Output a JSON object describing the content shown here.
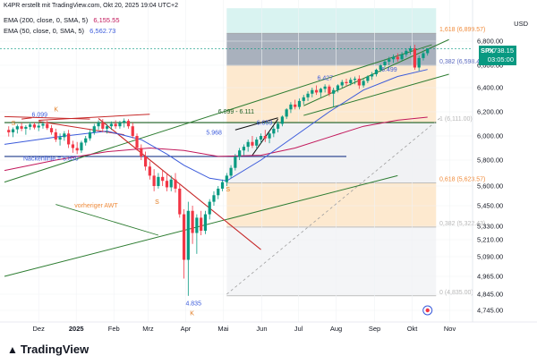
{
  "header": {
    "credit": "K4PR erstellt mit TradingView.com, Okt 20, 2025 19:04 UTC+2"
  },
  "indicators": [
    {
      "label": "EMA (200, close, 0, SMA, 5)",
      "value": "6,155.55",
      "color": "#c2185b"
    },
    {
      "label": "EMA (50, close, 0, SMA, 5)",
      "value": "6,562.73",
      "color": "#3b5bdb"
    }
  ],
  "currency": "USD",
  "price_box": {
    "symbol": "SPX",
    "price": "6,738.15",
    "countdown": "03:05:00"
  },
  "logo": "TradingView",
  "fib_labels": [
    {
      "text": "1,618 (6,899.57)",
      "y": 6899.57,
      "color": "#f08c3c"
    },
    {
      "text": "0,382 (6,598.43)",
      "y": 6598.43,
      "color": "#5c6bc0"
    },
    {
      "text": "1 (6,111.00)",
      "y": 6111.0,
      "color": "#b8b8b8"
    },
    {
      "text": "0,618 (5,623.57)",
      "y": 5623.57,
      "color": "#f08c3c"
    },
    {
      "text": "0,382 (5,322.43)",
      "y": 5322.43,
      "color": "#b8b8b8"
    },
    {
      "text": "0 (4,835.00)",
      "y": 4835.0,
      "color": "#b8b8b8"
    }
  ],
  "annotations": [
    {
      "text": "6.099",
      "x": 3.2,
      "y": 6160,
      "color": "#3b5bdb"
    },
    {
      "text": "6.099 - 6.111",
      "x": 25,
      "y": 6185,
      "color": "#1b5e20"
    },
    {
      "text": "5.968",
      "x": 23.6,
      "y": 6010,
      "color": "#3b5bdb"
    },
    {
      "text": "6.059",
      "x": 29.5,
      "y": 6092,
      "color": "#3b5bdb"
    },
    {
      "text": "6.427",
      "x": 36.6,
      "y": 6470,
      "color": "#3b5bdb"
    },
    {
      "text": "6.499",
      "x": 44.1,
      "y": 6545,
      "color": "#3b5bdb"
    },
    {
      "text": "Nackenlinie = 5.830",
      "x": 2.2,
      "y": 5795,
      "color": "#3b5bdb"
    },
    {
      "text": "vorheriger AWT",
      "x": 8.2,
      "y": 5440,
      "color": "#f08c3c"
    },
    {
      "text": "4.835",
      "x": 21.2,
      "y": 4775,
      "color": "#3b5bdb"
    },
    {
      "text": "S",
      "x": 0.8,
      "y": 6090,
      "color": "#e07a1f"
    },
    {
      "text": "K",
      "x": 5.8,
      "y": 6205,
      "color": "#e07a1f"
    },
    {
      "text": "S",
      "x": 17.6,
      "y": 5465,
      "color": "#e07a1f"
    },
    {
      "text": "S",
      "x": 25.9,
      "y": 5560,
      "color": "#e07a1f"
    },
    {
      "text": "K",
      "x": 21.7,
      "y": 4715,
      "color": "#e07a1f"
    }
  ],
  "chart_data": {
    "type": "candlestick",
    "title": "",
    "ylim": [
      4700,
      8000
    ],
    "y_axis_ticks": [
      "6,800.00",
      "6,600.00",
      "6,400.00",
      "6,200.00",
      "6,000.00",
      "5,800.00",
      "5,600.00",
      "5,450.00",
      "5,330.00",
      "5,210.00",
      "5,090.00",
      "4,965.00",
      "4,845.00",
      "4,745.00"
    ],
    "x_axis_ticks": [
      {
        "label": "Dez",
        "t": 4
      },
      {
        "label": "2025",
        "t": 8.4
      },
      {
        "label": "Feb",
        "t": 12.8
      },
      {
        "label": "Mrz",
        "t": 16.8
      },
      {
        "label": "Apr",
        "t": 21.2
      },
      {
        "label": "Mai",
        "t": 25.6
      },
      {
        "label": "Jun",
        "t": 30.1
      },
      {
        "label": "Jul",
        "t": 34.4
      },
      {
        "label": "Aug",
        "t": 38.8
      },
      {
        "label": "Sep",
        "t": 43.3
      },
      {
        "label": "Okt",
        "t": 47.7
      },
      {
        "label": "Nov",
        "t": 52.1
      }
    ],
    "last_price": 6738.15,
    "candles": [
      {
        "t": 0.5,
        "o": 6050,
        "h": 6080,
        "l": 5995,
        "c": 6030
      },
      {
        "t": 1,
        "o": 6030,
        "h": 6070,
        "l": 5990,
        "c": 6055
      },
      {
        "t": 1.5,
        "o": 6055,
        "h": 6095,
        "l": 6020,
        "c": 6080
      },
      {
        "t": 2,
        "o": 6080,
        "h": 6110,
        "l": 6040,
        "c": 6060
      },
      {
        "t": 2.5,
        "o": 6060,
        "h": 6090,
        "l": 6010,
        "c": 6075
      },
      {
        "t": 3,
        "o": 6075,
        "h": 6115,
        "l": 6050,
        "c": 6095
      },
      {
        "t": 3.5,
        "o": 6095,
        "h": 6110,
        "l": 6055,
        "c": 6070
      },
      {
        "t": 4,
        "o": 6070,
        "h": 6105,
        "l": 6040,
        "c": 6085
      },
      {
        "t": 4.5,
        "o": 6085,
        "h": 6120,
        "l": 6060,
        "c": 6100
      },
      {
        "t": 5,
        "o": 6100,
        "h": 6125,
        "l": 6050,
        "c": 6065
      },
      {
        "t": 5.5,
        "o": 6065,
        "h": 6090,
        "l": 6010,
        "c": 6030
      },
      {
        "t": 6,
        "o": 6030,
        "h": 6060,
        "l": 5950,
        "c": 5970
      },
      {
        "t": 6.5,
        "o": 5970,
        "h": 6020,
        "l": 5920,
        "c": 5990
      },
      {
        "t": 7,
        "o": 5990,
        "h": 6040,
        "l": 5960,
        "c": 6020
      },
      {
        "t": 7.5,
        "o": 6020,
        "h": 6050,
        "l": 5900,
        "c": 5930
      },
      {
        "t": 8,
        "o": 5930,
        "h": 5960,
        "l": 5860,
        "c": 5900
      },
      {
        "t": 8.5,
        "o": 5900,
        "h": 5950,
        "l": 5850,
        "c": 5880
      },
      {
        "t": 9,
        "o": 5880,
        "h": 5960,
        "l": 5860,
        "c": 5945
      },
      {
        "t": 9.5,
        "o": 5945,
        "h": 6000,
        "l": 5920,
        "c": 5980
      },
      {
        "t": 10,
        "o": 5980,
        "h": 6050,
        "l": 5960,
        "c": 6030
      },
      {
        "t": 10.5,
        "o": 6030,
        "h": 6100,
        "l": 6010,
        "c": 6080
      },
      {
        "t": 11,
        "o": 6080,
        "h": 6130,
        "l": 6050,
        "c": 6110
      },
      {
        "t": 11.5,
        "o": 6110,
        "h": 6140,
        "l": 6030,
        "c": 6060
      },
      {
        "t": 12,
        "o": 6060,
        "h": 6100,
        "l": 6020,
        "c": 6080
      },
      {
        "t": 12.5,
        "o": 6080,
        "h": 6120,
        "l": 6050,
        "c": 6100
      },
      {
        "t": 13,
        "o": 6100,
        "h": 6130,
        "l": 6060,
        "c": 6080
      },
      {
        "t": 13.5,
        "o": 6080,
        "h": 6125,
        "l": 6060,
        "c": 6110
      },
      {
        "t": 14,
        "o": 6110,
        "h": 6145,
        "l": 6070,
        "c": 6125
      },
      {
        "t": 14.5,
        "o": 6125,
        "h": 6140,
        "l": 6060,
        "c": 6080
      },
      {
        "t": 15,
        "o": 6080,
        "h": 6110,
        "l": 5980,
        "c": 6000
      },
      {
        "t": 15.5,
        "o": 6000,
        "h": 6020,
        "l": 5880,
        "c": 5900
      },
      {
        "t": 16,
        "o": 5900,
        "h": 5930,
        "l": 5800,
        "c": 5830
      },
      {
        "t": 16.5,
        "o": 5830,
        "h": 5870,
        "l": 5720,
        "c": 5750
      },
      {
        "t": 17,
        "o": 5750,
        "h": 5790,
        "l": 5650,
        "c": 5680
      },
      {
        "t": 17.5,
        "o": 5680,
        "h": 5730,
        "l": 5560,
        "c": 5600
      },
      {
        "t": 18,
        "o": 5600,
        "h": 5700,
        "l": 5580,
        "c": 5670
      },
      {
        "t": 18.5,
        "o": 5670,
        "h": 5720,
        "l": 5600,
        "c": 5640
      },
      {
        "t": 19,
        "o": 5640,
        "h": 5700,
        "l": 5560,
        "c": 5590
      },
      {
        "t": 19.5,
        "o": 5590,
        "h": 5680,
        "l": 5560,
        "c": 5650
      },
      {
        "t": 20,
        "o": 5650,
        "h": 5700,
        "l": 5550,
        "c": 5580
      },
      {
        "t": 20.5,
        "o": 5580,
        "h": 5620,
        "l": 5380,
        "c": 5400
      },
      {
        "t": 21,
        "o": 5400,
        "h": 5430,
        "l": 4950,
        "c": 5070
      },
      {
        "t": 21.5,
        "o": 5070,
        "h": 5480,
        "l": 4835,
        "c": 5420
      },
      {
        "t": 22,
        "o": 5420,
        "h": 5450,
        "l": 5180,
        "c": 5270
      },
      {
        "t": 22.5,
        "o": 5270,
        "h": 5400,
        "l": 5110,
        "c": 5380
      },
      {
        "t": 23,
        "o": 5380,
        "h": 5420,
        "l": 5250,
        "c": 5290
      },
      {
        "t": 23.5,
        "o": 5290,
        "h": 5420,
        "l": 5260,
        "c": 5400
      },
      {
        "t": 24,
        "o": 5400,
        "h": 5500,
        "l": 5370,
        "c": 5480
      },
      {
        "t": 24.5,
        "o": 5480,
        "h": 5560,
        "l": 5450,
        "c": 5530
      },
      {
        "t": 25,
        "o": 5530,
        "h": 5600,
        "l": 5500,
        "c": 5580
      },
      {
        "t": 25.5,
        "o": 5580,
        "h": 5650,
        "l": 5560,
        "c": 5630
      },
      {
        "t": 26,
        "o": 5630,
        "h": 5700,
        "l": 5600,
        "c": 5680
      },
      {
        "t": 26.5,
        "o": 5680,
        "h": 5760,
        "l": 5660,
        "c": 5740
      },
      {
        "t": 27,
        "o": 5740,
        "h": 5850,
        "l": 5720,
        "c": 5830
      },
      {
        "t": 27.5,
        "o": 5830,
        "h": 5900,
        "l": 5800,
        "c": 5880
      },
      {
        "t": 28,
        "o": 5880,
        "h": 5930,
        "l": 5840,
        "c": 5910
      },
      {
        "t": 28.5,
        "o": 5910,
        "h": 5970,
        "l": 5870,
        "c": 5950
      },
      {
        "t": 29,
        "o": 5950,
        "h": 6000,
        "l": 5900,
        "c": 5920
      },
      {
        "t": 29.5,
        "o": 5920,
        "h": 5990,
        "l": 5890,
        "c": 5970
      },
      {
        "t": 30,
        "o": 5970,
        "h": 6020,
        "l": 5940,
        "c": 6000
      },
      {
        "t": 30.5,
        "o": 6000,
        "h": 6050,
        "l": 5950,
        "c": 5980
      },
      {
        "t": 31,
        "o": 5980,
        "h": 6030,
        "l": 5940,
        "c": 6020
      },
      {
        "t": 31.5,
        "o": 6020,
        "h": 6080,
        "l": 5990,
        "c": 6060
      },
      {
        "t": 32,
        "o": 6060,
        "h": 6120,
        "l": 6030,
        "c": 6100
      },
      {
        "t": 32.5,
        "o": 6100,
        "h": 6170,
        "l": 6080,
        "c": 6160
      },
      {
        "t": 33,
        "o": 6160,
        "h": 6230,
        "l": 6140,
        "c": 6220
      },
      {
        "t": 33.5,
        "o": 6220,
        "h": 6280,
        "l": 6190,
        "c": 6260
      },
      {
        "t": 34,
        "o": 6260,
        "h": 6300,
        "l": 6220,
        "c": 6240
      },
      {
        "t": 34.5,
        "o": 6240,
        "h": 6310,
        "l": 6220,
        "c": 6290
      },
      {
        "t": 35,
        "o": 6290,
        "h": 6340,
        "l": 6260,
        "c": 6320
      },
      {
        "t": 35.5,
        "o": 6320,
        "h": 6370,
        "l": 6290,
        "c": 6350
      },
      {
        "t": 36,
        "o": 6350,
        "h": 6400,
        "l": 6320,
        "c": 6380
      },
      {
        "t": 36.5,
        "o": 6380,
        "h": 6420,
        "l": 6340,
        "c": 6360
      },
      {
        "t": 37,
        "o": 6360,
        "h": 6400,
        "l": 6320,
        "c": 6390
      },
      {
        "t": 37.5,
        "o": 6390,
        "h": 6430,
        "l": 6360,
        "c": 6410
      },
      {
        "t": 38,
        "o": 6410,
        "h": 6427,
        "l": 6330,
        "c": 6350
      },
      {
        "t": 38.5,
        "o": 6350,
        "h": 6400,
        "l": 6240,
        "c": 6380
      },
      {
        "t": 39,
        "o": 6380,
        "h": 6430,
        "l": 6360,
        "c": 6420
      },
      {
        "t": 39.5,
        "o": 6420,
        "h": 6470,
        "l": 6400,
        "c": 6450
      },
      {
        "t": 40,
        "o": 6450,
        "h": 6480,
        "l": 6410,
        "c": 6440
      },
      {
        "t": 40.5,
        "o": 6440,
        "h": 6490,
        "l": 6420,
        "c": 6470
      },
      {
        "t": 41,
        "o": 6470,
        "h": 6499,
        "l": 6430,
        "c": 6480
      },
      {
        "t": 41.5,
        "o": 6480,
        "h": 6510,
        "l": 6390,
        "c": 6420
      },
      {
        "t": 42,
        "o": 6420,
        "h": 6480,
        "l": 6400,
        "c": 6460
      },
      {
        "t": 42.5,
        "o": 6460,
        "h": 6510,
        "l": 6440,
        "c": 6500
      },
      {
        "t": 43,
        "o": 6500,
        "h": 6540,
        "l": 6470,
        "c": 6520
      },
      {
        "t": 43.5,
        "o": 6520,
        "h": 6570,
        "l": 6500,
        "c": 6560
      },
      {
        "t": 44,
        "o": 6560,
        "h": 6610,
        "l": 6540,
        "c": 6600
      },
      {
        "t": 44.5,
        "o": 6600,
        "h": 6650,
        "l": 6580,
        "c": 6630
      },
      {
        "t": 45,
        "o": 6630,
        "h": 6670,
        "l": 6600,
        "c": 6650
      },
      {
        "t": 45.5,
        "o": 6650,
        "h": 6690,
        "l": 6620,
        "c": 6670
      },
      {
        "t": 46,
        "o": 6670,
        "h": 6700,
        "l": 6630,
        "c": 6650
      },
      {
        "t": 46.5,
        "o": 6650,
        "h": 6710,
        "l": 6640,
        "c": 6690
      },
      {
        "t": 47,
        "o": 6690,
        "h": 6740,
        "l": 6670,
        "c": 6720
      },
      {
        "t": 47.5,
        "o": 6720,
        "h": 6760,
        "l": 6690,
        "c": 6740
      },
      {
        "t": 48,
        "o": 6740,
        "h": 6770,
        "l": 6560,
        "c": 6580
      },
      {
        "t": 48.5,
        "o": 6580,
        "h": 6680,
        "l": 6550,
        "c": 6660
      },
      {
        "t": 49,
        "o": 6660,
        "h": 6720,
        "l": 6640,
        "c": 6700
      },
      {
        "t": 49.5,
        "o": 6700,
        "h": 6740,
        "l": 6680,
        "c": 6738.15
      }
    ],
    "ema200": [
      [
        0,
        5720
      ],
      [
        6,
        5800
      ],
      [
        12,
        5870
      ],
      [
        17,
        5900
      ],
      [
        21,
        5880
      ],
      [
        25,
        5830
      ],
      [
        30,
        5840
      ],
      [
        34,
        5900
      ],
      [
        38,
        5990
      ],
      [
        42,
        6080
      ],
      [
        46,
        6130
      ],
      [
        49.5,
        6155.55
      ]
    ],
    "ema50": [
      [
        0,
        5930
      ],
      [
        6,
        5990
      ],
      [
        12,
        6040
      ],
      [
        16,
        5970
      ],
      [
        19,
        5850
      ],
      [
        21,
        5760
      ],
      [
        24,
        5660
      ],
      [
        26,
        5640
      ],
      [
        30,
        5800
      ],
      [
        34,
        6000
      ],
      [
        38,
        6200
      ],
      [
        42,
        6380
      ],
      [
        46,
        6500
      ],
      [
        49.5,
        6562.73
      ]
    ]
  }
}
